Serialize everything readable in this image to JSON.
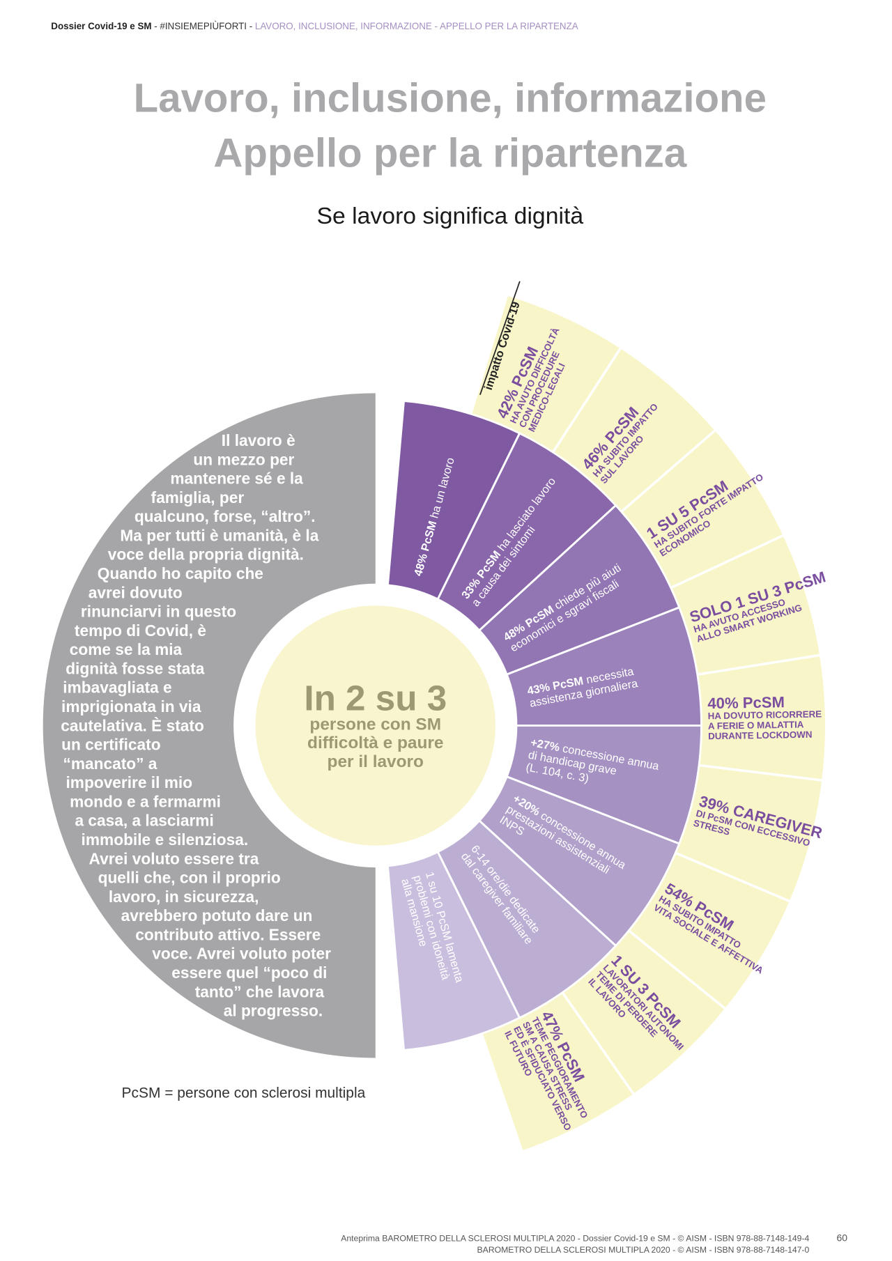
{
  "header": {
    "part1": "Dossier Covid-19 e SM",
    "part2": " - #INSIEMEPIÙFORTI - ",
    "part3": "LAVORO, INCLUSIONE, INFORMAZIONE - APPELLO PER LA RIPARTENZA"
  },
  "title": [
    "Lavoro, inclusione, informazione",
    "Appello per la ripartenza"
  ],
  "subtitle": "Se lavoro significa dignità",
  "quote": [
    "Il lavoro è",
    "un mezzo per",
    "mantenere sé e la",
    "famiglia, per",
    "qualcuno, forse, “altro”.",
    "Ma per tutti è umanità, è la",
    "voce della propria dignità.",
    "Quando ho capito che",
    "avrei dovuto",
    "rinunciarvi in questo",
    "tempo di Covid, è",
    "come se la mia",
    "dignità fosse stata",
    "imbavagliata e",
    "imprigionata in via",
    "cautelativa. È stato",
    "un certificato",
    "“mancato” a",
    "impoverire il mio",
    "mondo e a fermarmi",
    "a casa, a lasciarmi",
    "immobile e silenziosa.",
    "Avrei voluto essere tra",
    "quelli che, con il proprio",
    "lavoro, in sicurezza,",
    "avrebbero potuto dare un",
    "contributo attivo. Essere",
    "voce.  Avrei voluto poter",
    "essere quel “poco di",
    "tanto” che lavora",
    "al progresso."
  ],
  "center": {
    "headline": "In 2 su 3",
    "lines": [
      "persone con SM",
      "difficoltà e paure",
      "per il lavoro"
    ]
  },
  "impact_label": "impatto Covid-19",
  "inner_segments": [
    {
      "lead": "48% PcSM",
      "lines": [
        "ha un lavoro"
      ]
    },
    {
      "lead": "33% PcSM",
      "lines": [
        "ha lasciato lavoro",
        "a causa dei sintomi"
      ]
    },
    {
      "lead": "48% PcSM",
      "lines": [
        "chiede più aiuti",
        "economici e sgravi fiscali"
      ]
    },
    {
      "lead": "43% PcSM",
      "lines": [
        "necessita",
        "assistenza giornaliera"
      ]
    },
    {
      "lead": "+27%",
      "lines": [
        "concessione annua",
        "di handicap grave",
        "(L. 104, c. 3)"
      ]
    },
    {
      "lead": "+20%",
      "lines": [
        "concessione annua",
        "prestazioni assistenziali",
        "INPS"
      ]
    },
    {
      "lines": [
        "6-14 ore/die dedicate",
        "dal caregiver familiare"
      ]
    },
    {
      "lines": [
        "1 su 10 PcSM lamenta",
        "problemi con idoneità",
        "alla mansione"
      ]
    }
  ],
  "outer_segments": [
    {
      "lead": "42% PcSM",
      "lines": [
        "HA AVUTO DIFFICOLTÀ",
        "CON PROCEDURE",
        "MEDICO-LEGALI"
      ]
    },
    {
      "lead": "46% PcSM",
      "lines": [
        "HA SUBITO IMPATTO",
        "SUL LAVORO"
      ]
    },
    {
      "lead": "1 SU 5 PcSM",
      "lines": [
        "HA SUBITO FORTE IMPATTO",
        "ECONOMICO"
      ]
    },
    {
      "lead": "SOLO 1 SU 3 PcSM",
      "lines": [
        "HA AVUTO ACCESSO",
        "ALLO SMART WORKING"
      ]
    },
    {
      "lead": "40% PcSM",
      "lines": [
        "HA DOVUTO RICORRERE",
        "A FERIE O MALATTIA",
        "DURANTE LOCKDOWN"
      ]
    },
    {
      "lead": "39% CAREGIVER",
      "lines": [
        "DI PcSM CON ECCESSIVO",
        "STRESS"
      ]
    },
    {
      "lead": "54% PcSM",
      "lines": [
        "HA SUBITO IMPATTO",
        "VITA SOCIALE E AFFETTIVA"
      ]
    },
    {
      "lead": "1 SU 3 PcSM",
      "lines": [
        "LAVORATORI AUTONOMI",
        "TEME DI PERDERE",
        "IL LAVORO"
      ]
    },
    {
      "lead": "47% PcSM",
      "lines": [
        "TEME PEGGIORAMENTO",
        "SM A CAUSA STRESS",
        "ED È SFIDUCIATO VERSO",
        "IL FUTURO"
      ]
    }
  ],
  "footnote": "PcSM = persone con sclerosi multipla",
  "footer": [
    "Anteprima BAROMETRO DELLA SCLEROSI MULTIPLA 2020 - Dossier Covid-19 e SM - © AISM - ISBN 978-88-7148-149-4",
    "BAROMETRO DELLA SCLEROSI MULTIPLA 2020 - © AISM - ISBN 978-88-7148-147-0"
  ],
  "page_number": "60"
}
